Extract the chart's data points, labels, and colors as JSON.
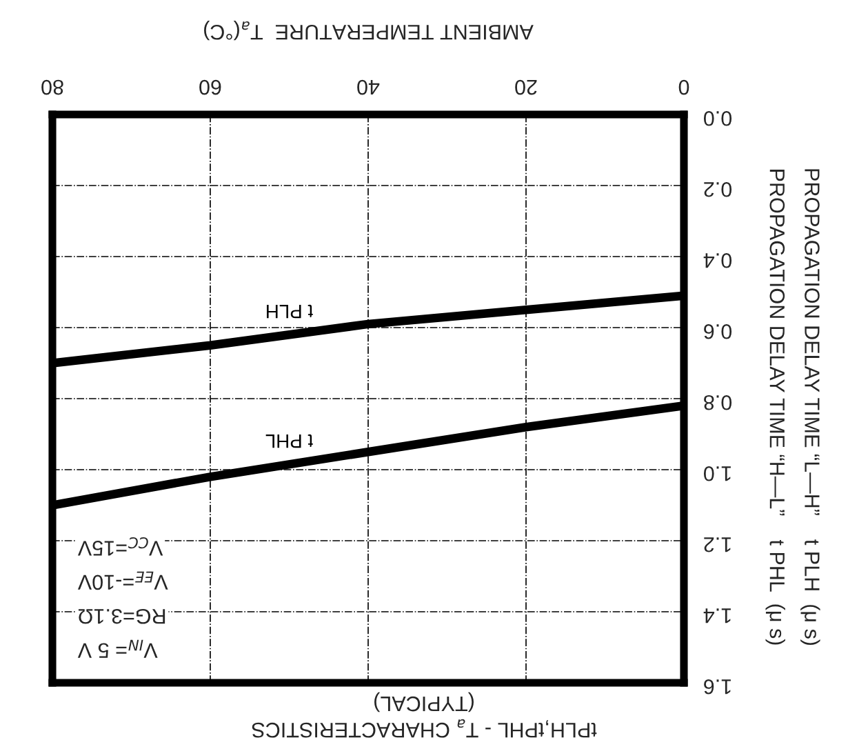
{
  "chart_data": {
    "type": "line",
    "title": "tPLH,tPHL - T$_{a}$ CHARACTERISTICS",
    "subtitle": "(TYPICAL)",
    "xlabel": "AMBIENT TEMPERATURE  T$_{a}$(°C)",
    "ylabel": "PROPAGATION DELAY TIME “L—H”    t PLH  (μ s)\nPROPAGATION DELAY TIME “H—L”    t PHL  (μ s)",
    "x": [
      0,
      20,
      40,
      60,
      80
    ],
    "series": [
      {
        "name": "t PLH",
        "color": "#000000",
        "values": [
          0.51,
          0.55,
          0.59,
          0.65,
          0.7
        ]
      },
      {
        "name": "t PHL",
        "color": "#000000",
        "values": [
          0.82,
          0.88,
          0.95,
          1.02,
          1.1
        ]
      }
    ],
    "annotations": [
      "V$_{CC}$=15V",
      "V$_{EE}$=-10V",
      "RG=3.1Ω",
      "V$_{IN}$= 5 V"
    ],
    "xlim": [
      80,
      0
    ],
    "xticks": [
      80,
      60,
      40,
      20,
      0
    ],
    "ylim": [
      1.6,
      0.0
    ],
    "yticks": [
      {
        "value": 0.0,
        "label": "0.0"
      },
      {
        "value": 0.2,
        "label": "0.2"
      },
      {
        "value": 0.4,
        "label": "0.4"
      },
      {
        "value": 0.6,
        "label": "0.6"
      },
      {
        "value": 0.8,
        "label": "0.8"
      },
      {
        "value": 1.0,
        "label": "1.0"
      },
      {
        "value": 1.2,
        "label": "1.2"
      },
      {
        "value": 1.4,
        "label": "1.4"
      },
      {
        "value": 1.6,
        "label": "1.6"
      }
    ],
    "grid": true,
    "line_style": "solid",
    "marker": "none"
  }
}
